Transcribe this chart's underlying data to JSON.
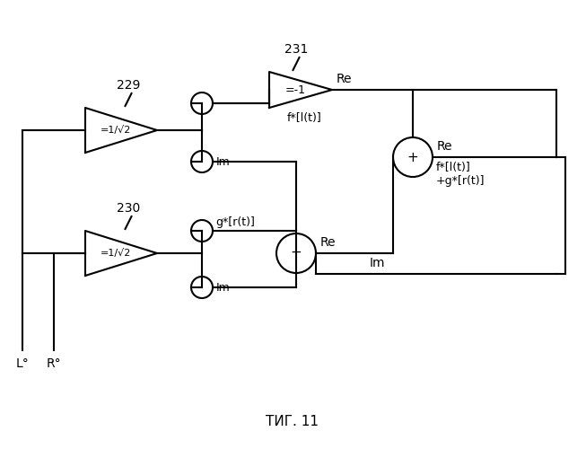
{
  "title": "ΤИГ. 11",
  "label_229": "229",
  "label_230": "230",
  "label_231": "231",
  "label_re_top": "Re",
  "label_re_mid": "Re",
  "label_re_out": "Re",
  "label_im_top": "Im",
  "label_im_bot": "Im",
  "label_im_out": "Im",
  "label_neg1": "=-1",
  "label_1v2": "=1/√2",
  "label_fl": "f*[l(t)]",
  "label_gr": "g*[r(t)]",
  "label_sum_out": "f*[l(t)]\n+g*[r(t)]",
  "label_plus": "+",
  "label_L": "L°",
  "label_R": "R°",
  "bg_color": "#ffffff",
  "line_color": "#000000"
}
